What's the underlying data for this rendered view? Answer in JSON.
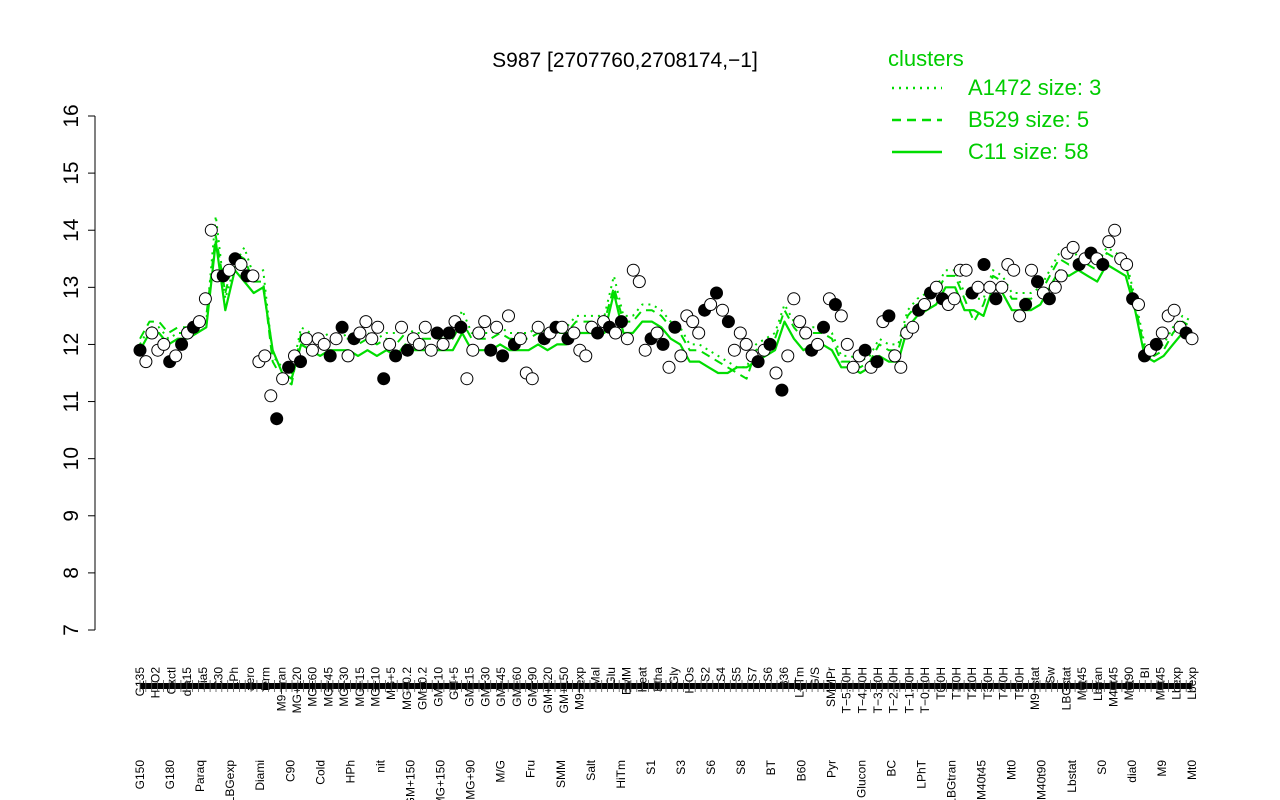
{
  "chart_data": {
    "type": "line",
    "title": "S987 [2707760,2708174,−1]",
    "xlabel": "",
    "ylabel": "",
    "ylim": [
      7,
      16
    ],
    "y_ticks": [
      "7",
      "8",
      "9",
      "10",
      "11",
      "12",
      "13",
      "14",
      "15",
      "16"
    ],
    "grid": false,
    "legend_placement": "top-right",
    "legend_title": "clusters",
    "x_labels_upper": [
      "G135",
      "H2O2",
      "Oxctl",
      "dia15",
      "dia5",
      "C30",
      "LPh",
      "aero",
      "ferm",
      "M9−tran",
      "MG+120",
      "MG+60",
      "MG+45",
      "MG+30",
      "MG+15",
      "MG+10",
      "MG+5",
      "MG−0.2",
      "GM−0.2",
      "GM+10",
      "GM+5",
      "GM+15",
      "GM+30",
      "GM+45",
      "GM+60",
      "GM+90",
      "GM+120",
      "GM+150",
      "M9−exp",
      "Mal",
      "Glu",
      "BMM",
      "Heat",
      "Etha",
      "Gly",
      "HiOs",
      "S2",
      "S4",
      "S5",
      "S7",
      "S6",
      "B36",
      "LoTm",
      "G/S",
      "SMMPr",
      "T−5.40H",
      "T−4.40H",
      "T−3.40H",
      "T−2.40H",
      "T−1.40H",
      "T−0.40H",
      "T0.0H",
      "T1.0H",
      "T2.0H",
      "T3.0H",
      "T4.0H",
      "T5.0H",
      "M9−stat",
      "Sw",
      "LBGstat",
      "M0t45",
      "Lbtran",
      "M40t45",
      "M0t90",
      "BI",
      "M0t45",
      "Lbexp",
      "Lbexp"
    ],
    "x_labels_lower": [
      "G150",
      "G180",
      "Paraq",
      "LBGexp",
      "Diami",
      "C90",
      "Cold",
      "HPh",
      "nit",
      "GM+150",
      "MG+150",
      "MG+90",
      "M/G",
      "Fru",
      "SMM",
      "Salt",
      "HiTm",
      "S1",
      "S3",
      "S6",
      "S8",
      "BT",
      "B60",
      "Pyr",
      "Glucon",
      "BC",
      "LPhT",
      "LBGtran",
      "M40t45",
      "Mt0",
      "M40t90",
      "Lbstat",
      "S0",
      "dia0",
      "M9",
      "Mt0"
    ],
    "series": [
      {
        "name": "A1472 size: 3",
        "style": "dotted",
        "values": [
          12.0,
          12.3,
          12.3,
          12.1,
          12.2,
          12.2,
          12.3,
          12.4,
          14.25,
          12.8,
          13.4,
          13.7,
          13.2,
          13.3,
          11.8,
          11.6,
          11.5,
          12.3,
          12.2,
          12.1,
          12.2,
          12.1,
          12.2,
          12.1,
          12.2,
          12.1,
          12.2,
          12.2,
          12.3,
          12.2,
          12.2,
          12.2,
          12.2,
          12.2,
          12.6,
          12.2,
          12.2,
          12.2,
          12.3,
          12.2,
          12.2,
          12.2,
          12.3,
          12.2,
          12.3,
          12.3,
          12.5,
          12.5,
          12.5,
          12.5,
          13.2,
          12.5,
          12.5,
          12.7,
          12.7,
          12.6,
          12.4,
          12.3,
          12.0,
          12.0,
          11.9,
          11.8,
          11.7,
          11.6,
          11.6,
          12.0,
          12.1,
          12.2,
          12.7,
          12.4,
          12.2,
          12.3,
          12.3,
          12.2,
          11.8,
          11.8,
          11.7,
          11.8,
          12.1,
          12.0,
          12.0,
          12.6,
          12.8,
          12.9,
          13.0,
          13.3,
          13.3,
          12.9,
          12.8,
          12.8,
          13.3,
          13.2,
          12.9,
          12.9,
          12.9,
          13.0,
          13.3,
          13.6,
          13.5,
          13.6,
          13.5,
          13.4,
          13.7,
          13.6,
          13.5,
          12.8,
          12.0,
          11.9,
          12.0,
          12.3,
          12.5,
          12.4
        ]
      },
      {
        "name": "B529 size: 5",
        "style": "dashed",
        "values": [
          12.1,
          12.4,
          12.4,
          12.2,
          12.3,
          12.3,
          12.4,
          12.5,
          13.9,
          12.9,
          13.6,
          13.5,
          13.1,
          13.1,
          11.7,
          11.4,
          11.3,
          12.2,
          12.1,
          12.0,
          12.1,
          12.1,
          12.1,
          12.0,
          12.1,
          12.0,
          12.1,
          12.0,
          12.2,
          12.1,
          12.1,
          12.1,
          12.1,
          12.1,
          12.4,
          12.1,
          12.1,
          12.1,
          12.2,
          12.1,
          12.1,
          12.1,
          12.2,
          12.1,
          12.2,
          12.2,
          12.4,
          12.4,
          12.4,
          12.4,
          13.0,
          12.4,
          12.4,
          12.6,
          12.6,
          12.5,
          12.3,
          12.2,
          11.9,
          11.9,
          11.8,
          11.7,
          11.6,
          11.5,
          11.4,
          11.9,
          12.0,
          12.1,
          12.6,
          12.3,
          12.1,
          12.2,
          12.2,
          12.1,
          11.7,
          11.7,
          11.6,
          11.7,
          12.0,
          11.9,
          11.9,
          12.5,
          12.7,
          12.8,
          12.9,
          13.2,
          13.2,
          12.8,
          12.4,
          12.7,
          13.2,
          13.1,
          12.8,
          12.8,
          12.8,
          12.9,
          13.2,
          13.5,
          13.4,
          13.5,
          13.4,
          13.3,
          13.6,
          13.5,
          13.4,
          12.7,
          11.9,
          11.8,
          11.9,
          12.2,
          12.4,
          12.3
        ]
      },
      {
        "name": "C11 size: 58",
        "style": "solid",
        "values": [
          11.9,
          12.2,
          12.2,
          12.0,
          12.1,
          12.1,
          12.2,
          12.3,
          13.8,
          12.6,
          13.3,
          13.1,
          12.9,
          13.0,
          11.9,
          11.5,
          11.4,
          12.0,
          11.9,
          11.8,
          11.9,
          11.9,
          11.9,
          11.8,
          11.9,
          11.8,
          11.9,
          11.8,
          12.0,
          11.9,
          11.9,
          11.9,
          11.9,
          11.9,
          12.2,
          11.9,
          11.9,
          11.9,
          12.0,
          11.9,
          11.9,
          11.9,
          12.0,
          11.9,
          12.0,
          12.0,
          12.2,
          12.2,
          12.2,
          12.2,
          12.9,
          12.2,
          12.2,
          12.4,
          12.4,
          12.3,
          12.1,
          12.0,
          11.7,
          11.7,
          11.6,
          11.5,
          11.5,
          11.6,
          11.6,
          11.7,
          11.8,
          11.9,
          12.4,
          12.1,
          11.9,
          12.0,
          12.0,
          11.9,
          11.6,
          11.6,
          11.5,
          11.6,
          11.8,
          11.7,
          11.7,
          12.3,
          12.5,
          12.6,
          12.7,
          13.0,
          13.0,
          12.6,
          12.6,
          12.5,
          13.0,
          12.9,
          12.6,
          12.6,
          12.6,
          12.7,
          13.0,
          13.3,
          13.2,
          13.3,
          13.2,
          13.1,
          13.4,
          13.3,
          13.2,
          12.6,
          11.8,
          11.7,
          11.8,
          12.0,
          12.2,
          12.1
        ]
      }
    ],
    "points": [
      11.9,
      11.7,
      12.2,
      11.9,
      12.0,
      11.7,
      11.8,
      12.0,
      12.2,
      12.3,
      12.4,
      12.8,
      14.0,
      13.2,
      13.2,
      13.3,
      13.5,
      13.4,
      13.2,
      13.2,
      11.7,
      11.8,
      11.1,
      10.7,
      11.4,
      11.6,
      11.8,
      11.7,
      12.1,
      11.9,
      12.1,
      12.0,
      11.8,
      12.1,
      12.3,
      11.8,
      12.1,
      12.2,
      12.4,
      12.1,
      12.3,
      11.4,
      12.0,
      11.8,
      12.3,
      11.9,
      12.1,
      12.0,
      12.3,
      11.9,
      12.2,
      12.0,
      12.2,
      12.4,
      12.3,
      11.4,
      11.9,
      12.2,
      12.4,
      11.9,
      12.3,
      11.8,
      12.5,
      12.0,
      12.1,
      11.5,
      11.4,
      12.3,
      12.1,
      12.2,
      12.3,
      12.3,
      12.1,
      12.2,
      11.9,
      11.8,
      12.3,
      12.2,
      12.4,
      12.3,
      12.2,
      12.4,
      12.1,
      13.3,
      13.1,
      11.9,
      12.1,
      12.2,
      12.0,
      11.6,
      12.3,
      11.8,
      12.5,
      12.4,
      12.2,
      12.6,
      12.7,
      12.9,
      12.6,
      12.4,
      11.9,
      12.2,
      12.0,
      11.8,
      11.7,
      11.9,
      12.0,
      11.5,
      11.2,
      11.8,
      12.8,
      12.4,
      12.2,
      11.9,
      12.0,
      12.3,
      12.8,
      12.7,
      12.5,
      12.0,
      11.6,
      11.8,
      11.9,
      11.6,
      11.7,
      12.4,
      12.5,
      11.8,
      11.6,
      12.2,
      12.3,
      12.6,
      12.7,
      12.9,
      13.0,
      12.8,
      12.7,
      12.8,
      13.3,
      13.3,
      12.9,
      13.0,
      13.4,
      13.0,
      12.8,
      13.0,
      13.4,
      13.3,
      12.5,
      12.7,
      13.3,
      13.1,
      12.9,
      12.8,
      13.0,
      13.2,
      13.6,
      13.7,
      13.4,
      13.5,
      13.6,
      13.5,
      13.4,
      13.8,
      14.0,
      13.5,
      13.4,
      12.8,
      12.7,
      11.8,
      11.9,
      12.0,
      12.2,
      12.5,
      12.6,
      12.3,
      12.2,
      12.1
    ]
  },
  "colors": {
    "line": "#00dd00",
    "legend_text": "#00cc00",
    "axis": "#000000",
    "point_open": "#ffffff",
    "point_filled": "#000000"
  }
}
